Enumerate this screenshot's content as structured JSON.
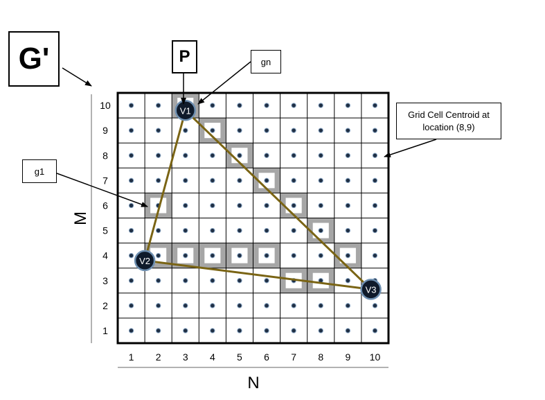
{
  "labels": {
    "g_prime": "G'",
    "p": "P",
    "gn": "gn",
    "g1": "g1",
    "centroid": "Grid Cell Centroid at location (8,9)"
  },
  "axes": {
    "x_label": "N",
    "y_label": "M",
    "x_ticks": [
      "1",
      "2",
      "3",
      "4",
      "5",
      "6",
      "7",
      "8",
      "9",
      "10"
    ],
    "y_ticks": [
      "1",
      "2",
      "3",
      "4",
      "5",
      "6",
      "7",
      "8",
      "9",
      "10"
    ]
  },
  "grid": {
    "columns": 10,
    "rows": 10
  },
  "highlighted_cells": [
    {
      "col": 3,
      "row": 10
    },
    {
      "col": 4,
      "row": 9
    },
    {
      "col": 5,
      "row": 8
    },
    {
      "col": 6,
      "row": 7
    },
    {
      "col": 2,
      "row": 6
    },
    {
      "col": 7,
      "row": 6
    },
    {
      "col": 8,
      "row": 5
    },
    {
      "col": 2,
      "row": 4
    },
    {
      "col": 3,
      "row": 4
    },
    {
      "col": 4,
      "row": 4
    },
    {
      "col": 5,
      "row": 4
    },
    {
      "col": 6,
      "row": 4
    },
    {
      "col": 9,
      "row": 4
    },
    {
      "col": 7,
      "row": 3
    },
    {
      "col": 8,
      "row": 3
    }
  ],
  "vertices": [
    {
      "name": "V1",
      "x": 3.0,
      "y": 9.8
    },
    {
      "name": "V2",
      "x": 1.5,
      "y": 3.8
    },
    {
      "name": "V3",
      "x": 9.85,
      "y": 2.65
    }
  ],
  "colors": {
    "triangle": "#7a6414",
    "highlight": "#a6a6a6",
    "vertex_fill": "#0f1a2a",
    "vertex_ring": "#6e8fb0",
    "centroid_dot": "#1f2f44"
  }
}
